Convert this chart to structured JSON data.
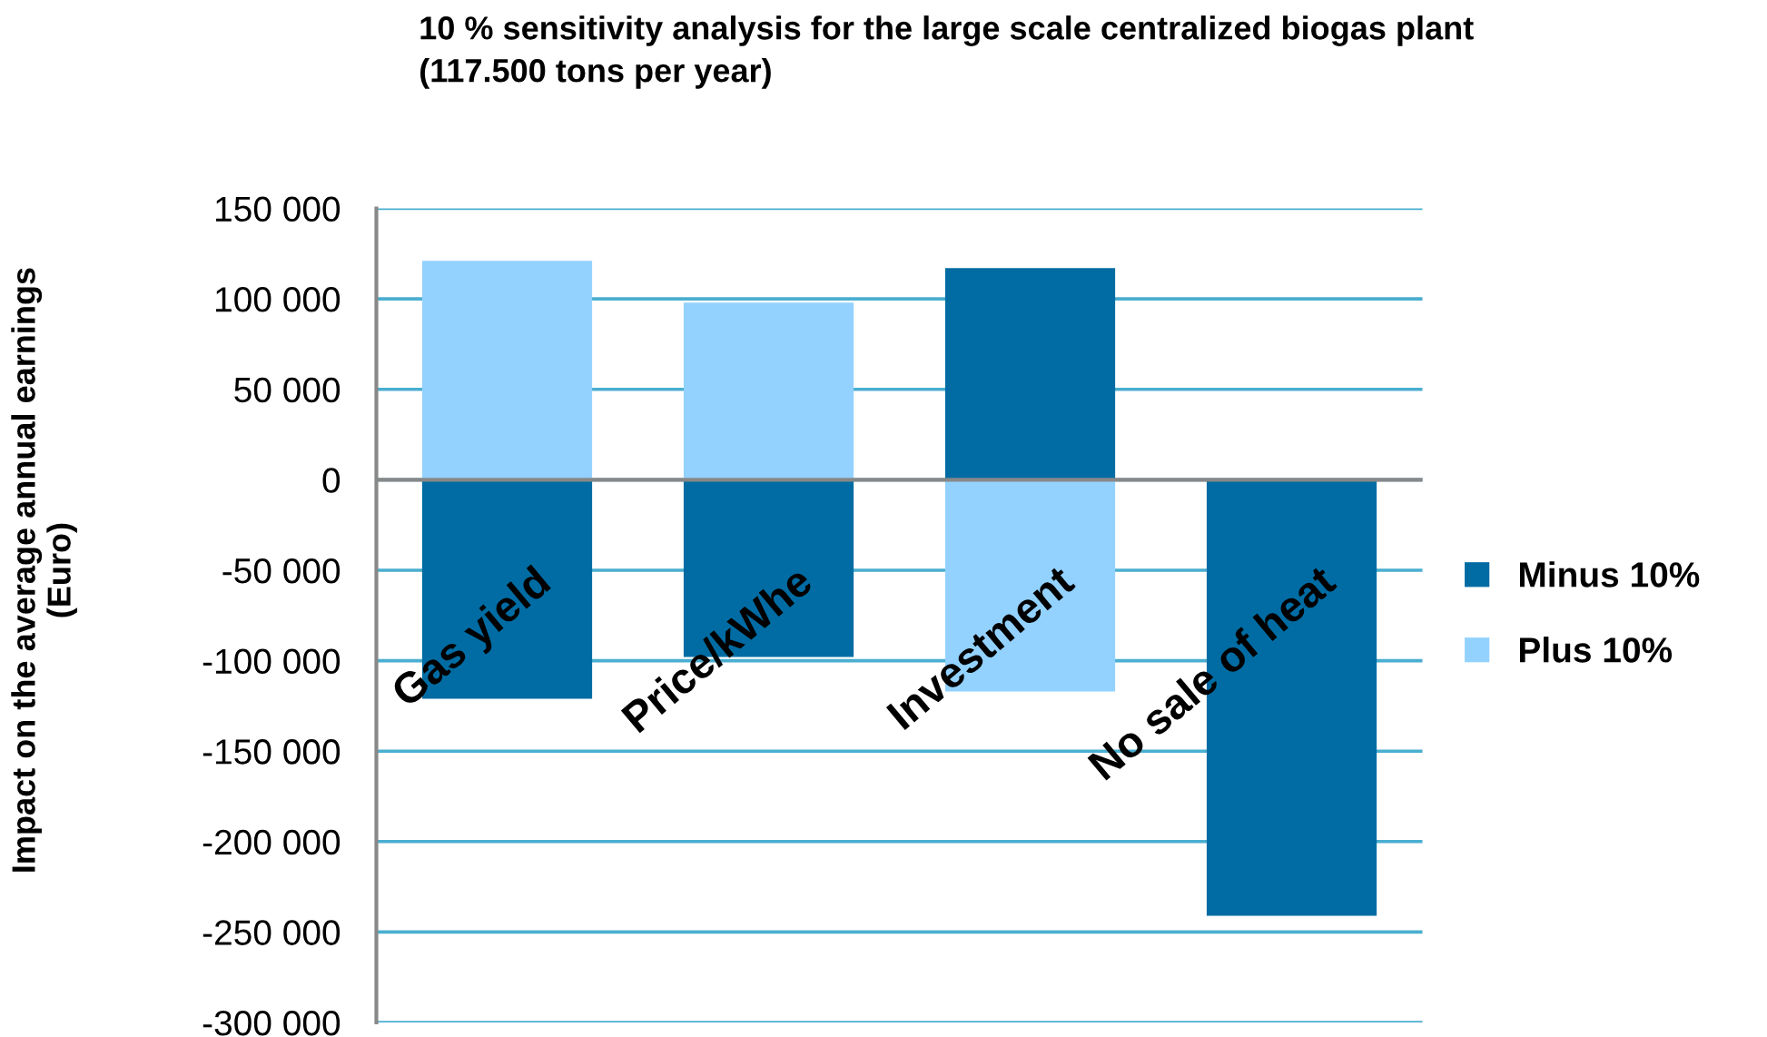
{
  "chart_data": {
    "type": "bar",
    "title": "10 % sensitivity analysis for the large scale centralized biogas plant\n(117.500 tons per year)",
    "ylabel": "Impact on the average annual earnings\n(Euro)",
    "categories": [
      "Gas yield",
      "Price/kWhe",
      "Investment",
      "No sale of heat"
    ],
    "series": [
      {
        "name": "Minus 10%",
        "color": "#006ca3",
        "values": [
          -121000,
          -98000,
          117000,
          -241000
        ]
      },
      {
        "name": "Plus 10%",
        "color": "#93d2ff",
        "values": [
          121000,
          98000,
          -117000,
          null
        ]
      }
    ],
    "stacked": true,
    "ylim": [
      -300000,
      150000
    ],
    "yticks": [
      {
        "value": -300000,
        "label": "-300 000"
      },
      {
        "value": -250000,
        "label": "-250 000"
      },
      {
        "value": -200000,
        "label": "-200 000"
      },
      {
        "value": -150000,
        "label": "-150 000"
      },
      {
        "value": -100000,
        "label": "-100 000"
      },
      {
        "value": -50000,
        "label": "-50 000"
      },
      0,
      {
        "value": 50000,
        "label": "50 000"
      },
      {
        "value": 100000,
        "label": "100 000"
      },
      {
        "value": 150000,
        "label": "150 000"
      }
    ],
    "grid": "y",
    "legend": "right"
  }
}
